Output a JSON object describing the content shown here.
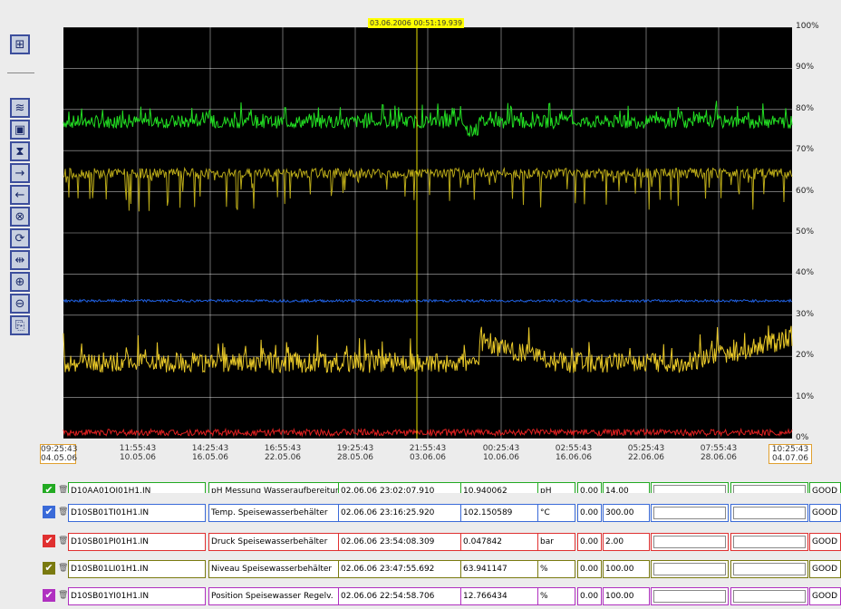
{
  "toolbar": {
    "buttons": [
      {
        "icon": "zoom-area-icon",
        "glyph": "⊞"
      },
      {
        "icon": "wave-icon",
        "glyph": "≋"
      },
      {
        "icon": "screen-icon",
        "glyph": "▣"
      },
      {
        "icon": "hourglass-icon",
        "glyph": "⧗"
      },
      {
        "icon": "arrow-right-icon",
        "glyph": "→"
      },
      {
        "icon": "arrow-left-icon",
        "glyph": "←"
      },
      {
        "icon": "target-icon",
        "glyph": "⊗"
      },
      {
        "icon": "refresh-icon",
        "glyph": "⟳"
      },
      {
        "icon": "compress-icon",
        "glyph": "⇹"
      },
      {
        "icon": "zoom-in-icon",
        "glyph": "⊕"
      },
      {
        "icon": "zoom-out-icon",
        "glyph": "⊖"
      },
      {
        "icon": "export-icon",
        "glyph": "⎘"
      }
    ]
  },
  "chart": {
    "cursor_label": "03.06.2006 00:51:19.939",
    "start_label": {
      "time": "09:25:43",
      "date": "04.05.06"
    },
    "end_label": {
      "time": "10:25:43",
      "date": "04.07.06"
    },
    "colors": {
      "background": "#000000",
      "grid": "#ffffff",
      "cursor": "#e8e000"
    }
  },
  "chart_data": {
    "type": "line",
    "x": [
      "11:55:43 10.05.06",
      "14:25:43 16.05.06",
      "16:55:43 22.05.06",
      "19:25:43 28.05.06",
      "21:55:43 03.06.06",
      "00:25:43 10.06.06",
      "02:55:43 16.06.06",
      "05:25:43 22.06.06",
      "07:55:43 28.06.06"
    ],
    "x_tick_labels": [
      {
        "time": "11:55:43",
        "date": "10.05.06"
      },
      {
        "time": "14:25:43",
        "date": "16.05.06"
      },
      {
        "time": "16:55:43",
        "date": "22.05.06"
      },
      {
        "time": "19:25:43",
        "date": "28.05.06"
      },
      {
        "time": "21:55:43",
        "date": "03.06.06"
      },
      {
        "time": "00:25:43",
        "date": "10.06.06"
      },
      {
        "time": "02:55:43",
        "date": "16.06.06"
      },
      {
        "time": "05:25:43",
        "date": "22.06.06"
      },
      {
        "time": "07:55:43",
        "date": "28.06.06"
      }
    ],
    "y_ticks": [
      "100%",
      "90%",
      "80%",
      "70%",
      "60%",
      "50%",
      "40%",
      "30%",
      "20%",
      "10%",
      "0%"
    ],
    "ylim": [
      0,
      100
    ],
    "grid": true,
    "series": [
      {
        "color": "#22dd22",
        "level": 77,
        "noise": 1.6,
        "spike": 4
      },
      {
        "color": "#b8a818",
        "level": 64.5,
        "noise": 1.2,
        "spike": -9
      },
      {
        "color": "#2060e0",
        "level": 33.5,
        "noise": 0.3,
        "spike": 0
      },
      {
        "color": "#e8c828",
        "level": 18.5,
        "noise": 2.5,
        "spike": 5
      },
      {
        "color": "#e02020",
        "level": 1.5,
        "noise": 0.8,
        "spike": 0
      }
    ]
  },
  "table": {
    "rows": [
      {
        "color": "#22aa22",
        "tag": "D10AA01QI01H1.IN",
        "desc": "pH Messung Wasseraufbereitung",
        "time": "02.06.06 23:02:07.910",
        "value": "10.940062",
        "unit": "pH",
        "min": "0.00",
        "max": "14.00",
        "status": "GOOD",
        "partial": true
      },
      {
        "color": "#3a6ad8",
        "tag": "D10SB01TI01H1.IN",
        "desc": "Temp. Speisewasserbehälter",
        "time": "02.06.06 23:16:25.920",
        "value": "102.150589",
        "unit": "°C",
        "min": "0.00",
        "max": "300.00",
        "status": "GOOD"
      },
      {
        "color": "#e03030",
        "tag": "D10SB01PI01H1.IN",
        "desc": "Druck Speisewasserbehälter",
        "time": "02.06.06 23:54:08.309",
        "value": "0.047842",
        "unit": "bar",
        "min": "0.00",
        "max": "2.00",
        "status": "GOOD"
      },
      {
        "color": "#7a7a10",
        "tag": "D10SB01LI01H1.IN",
        "desc": "Niveau Speisewasserbehälter",
        "time": "02.06.06 23:47:55.692",
        "value": "63.941147",
        "unit": "%",
        "min": "0.00",
        "max": "100.00",
        "status": "GOOD"
      },
      {
        "color": "#b030c0",
        "tag": "D10SB01YI01H1.IN",
        "desc": "Position Speisewasser Regelv.",
        "time": "02.06.06 22:54:58.706",
        "value": "12.766434",
        "unit": "%",
        "min": "0.00",
        "max": "100.00",
        "status": "GOOD"
      }
    ]
  }
}
